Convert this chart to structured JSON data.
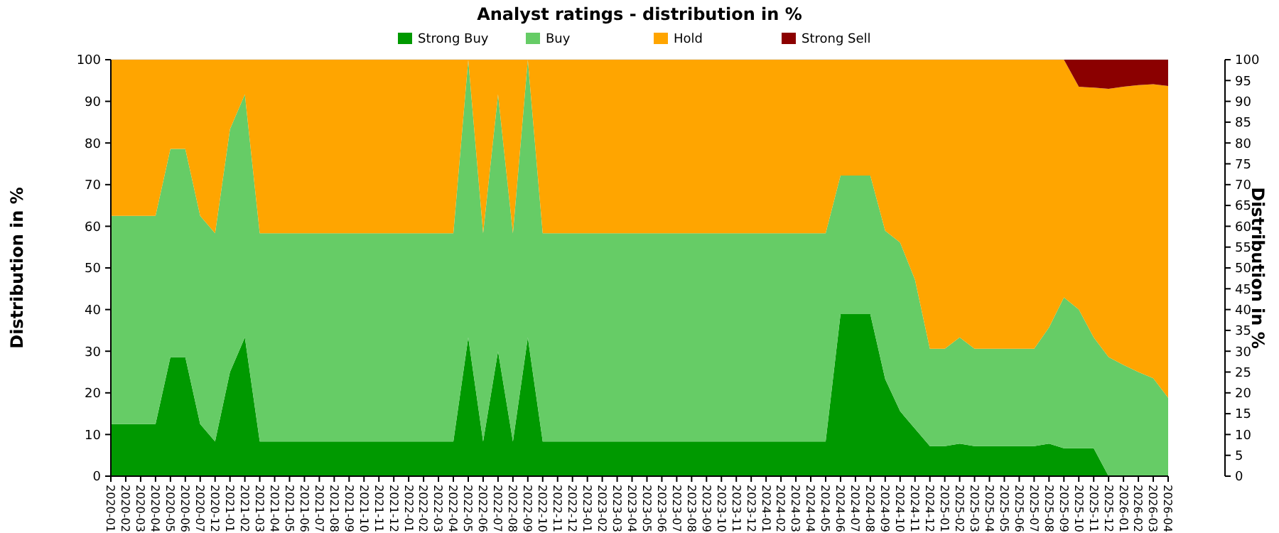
{
  "chart_data": {
    "type": "area",
    "stacked": true,
    "title": "Analyst ratings - distribution in %",
    "ylabel": "Distribution in %",
    "y2label": "Distribution in %",
    "categories": [
      "2020-01",
      "2020-02",
      "2020-03",
      "2020-04",
      "2020-05",
      "2020-06",
      "2020-07",
      "2020-12",
      "2021-01",
      "2021-02",
      "2021-03",
      "2021-04",
      "2021-05",
      "2021-06",
      "2021-07",
      "2021-08",
      "2021-09",
      "2021-10",
      "2021-11",
      "2021-12",
      "2022-01",
      "2022-02",
      "2022-03",
      "2022-04",
      "2022-05",
      "2022-06",
      "2022-07",
      "2022-08",
      "2022-09",
      "2022-10",
      "2022-11",
      "2022-12",
      "2023-01",
      "2023-02",
      "2023-03",
      "2023-04",
      "2023-05",
      "2023-06",
      "2023-07",
      "2023-08",
      "2023-09",
      "2023-10",
      "2023-11",
      "2023-12",
      "2024-01",
      "2024-02",
      "2024-03",
      "2024-04",
      "2024-05",
      "2024-06",
      "2024-07",
      "2024-08",
      "2024-09",
      "2024-10",
      "2024-11",
      "2024-12",
      "2025-01",
      "2025-02",
      "2025-03",
      "2025-04",
      "2025-05",
      "2025-06",
      "2025-07",
      "2025-08",
      "2025-09",
      "2025-10",
      "2025-11",
      "2025-12",
      "2026-01",
      "2026-02",
      "2026-03",
      "2026-04"
    ],
    "series": [
      {
        "name": "Strong Buy",
        "color": "#009900",
        "values": [
          12.5,
          12.5,
          12.5,
          12.5,
          28.6,
          28.6,
          12.5,
          8.3,
          25,
          33.3,
          8.3,
          8.3,
          8.3,
          8.3,
          8.3,
          8.3,
          8.3,
          8.3,
          8.3,
          8.3,
          8.3,
          8.3,
          8.3,
          8.3,
          33.3,
          8.3,
          30,
          8.3,
          33.3,
          8.3,
          8.3,
          8.3,
          8.3,
          8.3,
          8.3,
          8.3,
          8.3,
          8.3,
          8.3,
          8.3,
          8.3,
          8.3,
          8.3,
          8.3,
          8.3,
          8.3,
          8.3,
          8.3,
          8.3,
          38.9,
          38.9,
          38.9,
          23.3,
          15.6,
          11.4,
          7.2,
          7.2,
          7.8,
          7.2,
          7.2,
          7.2,
          7.2,
          7.2,
          7.8,
          6.7,
          6.7,
          6.7,
          0,
          0,
          0,
          0,
          0
        ]
      },
      {
        "name": "Buy",
        "color": "#66cc66",
        "values": [
          50,
          50,
          50,
          50,
          50,
          50,
          50,
          50,
          58.3,
          58.4,
          50,
          50,
          50,
          50,
          50,
          50,
          50,
          50,
          50,
          50,
          50,
          50,
          50,
          50,
          66.7,
          50,
          61.7,
          50,
          66.7,
          50,
          50,
          50,
          50,
          50,
          50,
          50,
          50,
          50,
          50,
          50,
          50,
          50,
          50,
          50,
          50,
          50,
          50,
          50,
          50,
          33.3,
          33.3,
          33.3,
          35.6,
          40.5,
          35.8,
          23.4,
          23.4,
          25.5,
          23.4,
          23.4,
          23.4,
          23.4,
          23.4,
          27.9,
          36.2,
          33.3,
          26.6,
          28.6,
          26.7,
          25,
          23.5,
          18.8
        ]
      },
      {
        "name": "Hold",
        "color": "#ffa500",
        "values": [
          37.5,
          37.5,
          37.5,
          37.5,
          21.4,
          21.4,
          37.5,
          41.7,
          16.7,
          8.3,
          41.7,
          41.7,
          41.7,
          41.7,
          41.7,
          41.7,
          41.7,
          41.7,
          41.7,
          41.7,
          41.7,
          41.7,
          41.7,
          41.7,
          0,
          41.7,
          8.3,
          41.7,
          0,
          41.7,
          41.7,
          41.7,
          41.7,
          41.7,
          41.7,
          41.7,
          41.7,
          41.7,
          41.7,
          41.7,
          41.7,
          41.7,
          41.7,
          41.7,
          41.7,
          41.7,
          41.7,
          41.7,
          41.7,
          27.8,
          27.8,
          27.8,
          41.1,
          43.9,
          52.8,
          69.4,
          69.4,
          66.7,
          69.4,
          69.4,
          69.4,
          69.4,
          69.4,
          64.3,
          57.1,
          53.5,
          60,
          64.4,
          66.8,
          68.9,
          70.6,
          74.9
        ]
      },
      {
        "name": "Strong Sell",
        "color": "#8b0000",
        "values": [
          0,
          0,
          0,
          0,
          0,
          0,
          0,
          0,
          0,
          0,
          0,
          0,
          0,
          0,
          0,
          0,
          0,
          0,
          0,
          0,
          0,
          0,
          0,
          0,
          0,
          0,
          0,
          0,
          0,
          0,
          0,
          0,
          0,
          0,
          0,
          0,
          0,
          0,
          0,
          0,
          0,
          0,
          0,
          0,
          0,
          0,
          0,
          0,
          0,
          0,
          0,
          0,
          0,
          0,
          0,
          0,
          0,
          0,
          0,
          0,
          0,
          0,
          0,
          0,
          0,
          6.5,
          6.7,
          7,
          6.5,
          6.1,
          5.9,
          6.3
        ]
      }
    ],
    "ylim": [
      0,
      100
    ],
    "yticks": [
      0,
      10,
      20,
      30,
      40,
      50,
      60,
      70,
      80,
      90,
      100
    ],
    "y2lim": [
      0,
      100
    ],
    "y2ticks": [
      0,
      5,
      10,
      15,
      20,
      25,
      30,
      35,
      40,
      45,
      50,
      55,
      60,
      65,
      70,
      75,
      80,
      85,
      90,
      95,
      100
    ],
    "grid": "y",
    "legend": "top"
  }
}
